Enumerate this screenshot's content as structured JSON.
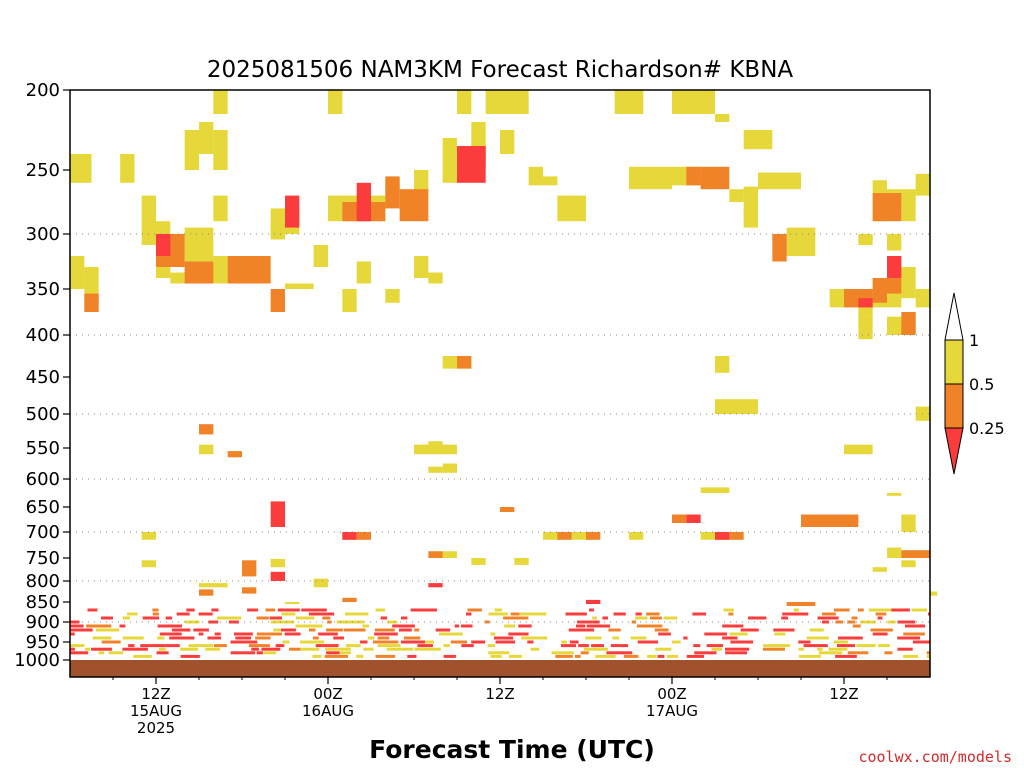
{
  "chart_data": {
    "type": "heatmap",
    "title": "2025081506 NAM3KM Forecast Richardson# KBNA",
    "xlabel": "Forecast Time (UTC)",
    "credit": "coolwx.com/models",
    "y_axis": {
      "label": "",
      "scale": "pressure (inverted)",
      "range": [
        1000,
        200
      ],
      "ticks": [
        200,
        250,
        300,
        350,
        400,
        450,
        500,
        550,
        600,
        650,
        700,
        750,
        800,
        850,
        900,
        950,
        1000
      ],
      "gridlines": [
        300,
        400,
        500,
        600,
        700,
        800,
        900
      ]
    },
    "x_axis": {
      "range_hours": [
        6,
        66
      ],
      "ticks": [
        {
          "hour": 12,
          "label": "12Z",
          "sub1": "15AUG",
          "sub2": "2025"
        },
        {
          "hour": 24,
          "label": "00Z",
          "sub1": "16AUG",
          "sub2": ""
        },
        {
          "hour": 36,
          "label": "12Z",
          "sub1": "",
          "sub2": ""
        },
        {
          "hour": 48,
          "label": "00Z",
          "sub1": "17AUG",
          "sub2": ""
        },
        {
          "hour": 60,
          "label": "12Z",
          "sub1": "",
          "sub2": ""
        }
      ]
    },
    "legend": {
      "placement": "right",
      "labels": [
        "1",
        "0.5",
        "0.25"
      ],
      "bins": [
        {
          "range": "0.5-1",
          "color": "#e6d83a"
        },
        {
          "range": "0.25-0.5",
          "color": "#f08228"
        },
        {
          "range": "<0.25",
          "color": "#fa3c3c"
        }
      ]
    },
    "ground_color": "#a0522d",
    "cells": [
      [
        "y",
        6,
        7.5,
        240,
        260
      ],
      [
        "y",
        9.5,
        10.5,
        240,
        260
      ],
      [
        "y",
        16,
        17,
        200,
        215
      ],
      [
        "y",
        24,
        25,
        200,
        215
      ],
      [
        "y",
        33,
        34,
        200,
        215
      ],
      [
        "y",
        35,
        38,
        200,
        215
      ],
      [
        "y",
        44,
        46,
        200,
        215
      ],
      [
        "y",
        48,
        51,
        200,
        215
      ],
      [
        "y",
        51,
        52,
        215,
        220
      ],
      [
        "y",
        14,
        15,
        225,
        250
      ],
      [
        "y",
        15,
        16,
        220,
        240
      ],
      [
        "y",
        16,
        17,
        225,
        250
      ],
      [
        "y",
        36,
        37,
        225,
        240
      ],
      [
        "y",
        38,
        39,
        248,
        262
      ],
      [
        "y",
        39,
        40,
        255,
        262
      ],
      [
        "y",
        53,
        55,
        225,
        237
      ],
      [
        "y",
        45,
        48,
        248,
        265
      ],
      [
        "y",
        48,
        50,
        248,
        262
      ],
      [
        "y",
        50,
        51,
        252,
        265
      ],
      [
        "y",
        53,
        54,
        263,
        290
      ],
      [
        "y",
        52,
        53,
        265,
        275
      ],
      [
        "y",
        54,
        57,
        252,
        265
      ],
      [
        "y",
        65,
        66,
        253,
        270
      ],
      [
        "y",
        11,
        12,
        270,
        310
      ],
      [
        "y",
        12,
        13,
        290,
        340
      ],
      [
        "y",
        14,
        16,
        295,
        340
      ],
      [
        "y",
        16,
        17,
        270,
        290
      ],
      [
        "y",
        20,
        22,
        280,
        300
      ],
      [
        "y",
        24,
        28,
        270,
        290
      ],
      [
        "y",
        30,
        31,
        250,
        270
      ],
      [
        "y",
        32,
        33,
        230,
        260
      ],
      [
        "y",
        34,
        35,
        220,
        245
      ],
      [
        "y",
        28,
        29,
        258,
        275
      ],
      [
        "y",
        40,
        42,
        270,
        290
      ],
      [
        "y",
        53,
        54,
        280,
        295
      ],
      [
        "y",
        56,
        58,
        295,
        320
      ],
      [
        "y",
        62,
        63,
        258,
        290
      ],
      [
        "y",
        63,
        65,
        265,
        275
      ],
      [
        "y",
        64,
        65,
        270,
        290
      ],
      [
        "y",
        61,
        62,
        300,
        310
      ],
      [
        "y",
        63,
        64,
        300,
        315
      ],
      [
        "y",
        7,
        8,
        330,
        370
      ],
      [
        "y",
        6,
        7,
        320,
        350
      ],
      [
        "y",
        13,
        16,
        335,
        345
      ],
      [
        "y",
        16,
        19,
        320,
        345
      ],
      [
        "y",
        20,
        21,
        290,
        305
      ],
      [
        "y",
        21,
        23,
        345,
        350
      ],
      [
        "y",
        23,
        24,
        310,
        330
      ],
      [
        "y",
        25,
        26,
        350,
        375
      ],
      [
        "y",
        26,
        27,
        325,
        345
      ],
      [
        "y",
        28,
        29,
        350,
        365
      ],
      [
        "y",
        30,
        31,
        320,
        340
      ],
      [
        "y",
        31,
        32,
        335,
        345
      ],
      [
        "y",
        59,
        61,
        350,
        370
      ],
      [
        "y",
        61,
        62,
        360,
        380
      ],
      [
        "y",
        62,
        64,
        340,
        370
      ],
      [
        "y",
        64,
        65,
        330,
        360
      ],
      [
        "y",
        65,
        66,
        350,
        370
      ],
      [
        "y",
        63,
        65,
        380,
        400
      ],
      [
        "y",
        61,
        62,
        380,
        405
      ],
      [
        "y",
        32,
        34,
        425,
        440
      ],
      [
        "y",
        51,
        52,
        425,
        445
      ],
      [
        "y",
        51,
        54,
        480,
        500
      ],
      [
        "y",
        65,
        66,
        490,
        510
      ],
      [
        "y",
        15,
        16,
        545,
        560
      ],
      [
        "y",
        30,
        33,
        545,
        560
      ],
      [
        "y",
        31,
        32,
        580,
        590
      ],
      [
        "y",
        32,
        33,
        575,
        590
      ],
      [
        "y",
        31,
        32,
        540,
        548
      ],
      [
        "y",
        50,
        52,
        615,
        625
      ],
      [
        "y",
        60,
        62,
        545,
        560
      ],
      [
        "y",
        63,
        64,
        625,
        630
      ],
      [
        "y",
        11,
        12,
        700,
        715
      ],
      [
        "y",
        11,
        12,
        755,
        770
      ],
      [
        "y",
        25,
        26,
        700,
        715
      ],
      [
        "y",
        32,
        33,
        737,
        750
      ],
      [
        "y",
        34,
        35,
        750,
        765
      ],
      [
        "y",
        37,
        38,
        750,
        765
      ],
      [
        "y",
        39,
        40,
        700,
        715
      ],
      [
        "y",
        41,
        42,
        700,
        715
      ],
      [
        "y",
        45,
        46,
        700,
        715
      ],
      [
        "y",
        50,
        52,
        700,
        715
      ],
      [
        "y",
        60,
        61,
        665,
        682
      ],
      [
        "y",
        64,
        65,
        665,
        700
      ],
      [
        "y",
        63,
        64,
        730,
        750
      ],
      [
        "y",
        64,
        65,
        755,
        770
      ],
      [
        "y",
        20,
        21,
        752,
        770
      ],
      [
        "y",
        23,
        24,
        795,
        815
      ],
      [
        "y",
        15,
        17,
        805,
        815
      ],
      [
        "y",
        21,
        22,
        850,
        855
      ],
      [
        "y",
        66,
        66.5,
        825,
        835
      ],
      [
        "y",
        62,
        63,
        770,
        780
      ],
      [
        "o",
        7,
        8,
        355,
        375
      ],
      [
        "o",
        12,
        14,
        300,
        330
      ],
      [
        "o",
        14,
        16,
        325,
        345
      ],
      [
        "o",
        17,
        18,
        320,
        345
      ],
      [
        "o",
        18,
        20,
        320,
        345
      ],
      [
        "o",
        20,
        21,
        350,
        375
      ],
      [
        "o",
        25,
        28,
        275,
        290
      ],
      [
        "o",
        28,
        29,
        255,
        280
      ],
      [
        "o",
        29,
        31,
        265,
        290
      ],
      [
        "o",
        34,
        35,
        235,
        250
      ],
      [
        "o",
        49,
        50,
        248,
        262
      ],
      [
        "o",
        50,
        52,
        248,
        265
      ],
      [
        "o",
        62,
        64,
        268,
        290
      ],
      [
        "o",
        62,
        63,
        340,
        365
      ],
      [
        "o",
        63,
        64,
        320,
        355
      ],
      [
        "o",
        60,
        62,
        350,
        370
      ],
      [
        "o",
        64,
        65,
        375,
        400
      ],
      [
        "o",
        55,
        56,
        300,
        325
      ],
      [
        "o",
        33,
        34,
        425,
        440
      ],
      [
        "o",
        15,
        16,
        515,
        530
      ],
      [
        "o",
        17,
        18,
        555,
        565
      ],
      [
        "o",
        18,
        19,
        755,
        790
      ],
      [
        "o",
        26,
        27,
        700,
        715
      ],
      [
        "o",
        36,
        37,
        650,
        660
      ],
      [
        "o",
        40,
        41,
        700,
        715
      ],
      [
        "o",
        42,
        43,
        700,
        715
      ],
      [
        "o",
        48,
        49,
        665,
        682
      ],
      [
        "o",
        57,
        61,
        665,
        690
      ],
      [
        "o",
        52,
        53,
        700,
        715
      ],
      [
        "o",
        64,
        66,
        735,
        750
      ],
      [
        "o",
        31,
        32,
        737,
        750
      ],
      [
        "o",
        15,
        16,
        820,
        835
      ],
      [
        "o",
        18,
        19,
        815,
        830
      ],
      [
        "o",
        25,
        26,
        840,
        850
      ],
      [
        "o",
        56,
        58,
        850,
        860
      ],
      [
        "r",
        12,
        13,
        300,
        320
      ],
      [
        "r",
        21,
        22,
        270,
        295
      ],
      [
        "r",
        26,
        27,
        260,
        290
      ],
      [
        "r",
        33,
        35,
        235,
        260
      ],
      [
        "r",
        63,
        64,
        320,
        340
      ],
      [
        "r",
        61,
        62,
        360,
        370
      ],
      [
        "r",
        20,
        21,
        640,
        690
      ],
      [
        "r",
        25,
        26,
        700,
        715
      ],
      [
        "r",
        49,
        50,
        665,
        682
      ],
      [
        "r",
        51,
        52,
        700,
        715
      ],
      [
        "r",
        20,
        21,
        780,
        800
      ],
      [
        "r",
        31,
        32,
        805,
        815
      ],
      [
        "r",
        42,
        43,
        845,
        855
      ]
    ],
    "strips": [
      {
        "y": 870,
        "x0": 6,
        "x1": 66
      },
      {
        "y": 880,
        "x0": 6,
        "x1": 66
      },
      {
        "y": 890,
        "x0": 6,
        "x1": 66
      },
      {
        "y": 900,
        "x0": 6,
        "x1": 66
      },
      {
        "y": 910,
        "x0": 6,
        "x1": 66
      },
      {
        "y": 920,
        "x0": 6,
        "x1": 66
      },
      {
        "y": 930,
        "x0": 6,
        "x1": 66
      },
      {
        "y": 940,
        "x0": 6,
        "x1": 66
      },
      {
        "y": 950,
        "x0": 6,
        "x1": 66
      },
      {
        "y": 960,
        "x0": 6,
        "x1": 66
      },
      {
        "y": 970,
        "x0": 6,
        "x1": 66
      },
      {
        "y": 980,
        "x0": 6,
        "x1": 66
      },
      {
        "y": 990,
        "x0": 6,
        "x1": 66
      }
    ]
  }
}
